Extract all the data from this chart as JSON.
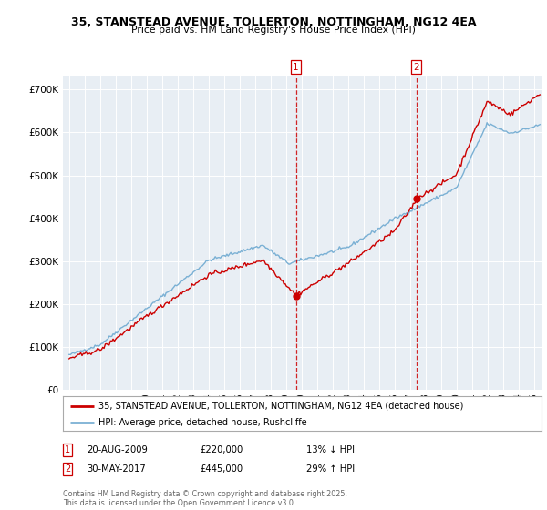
{
  "title": "35, STANSTEAD AVENUE, TOLLERTON, NOTTINGHAM, NG12 4EA",
  "subtitle": "Price paid vs. HM Land Registry's House Price Index (HPI)",
  "legend_line1": "35, STANSTEAD AVENUE, TOLLERTON, NOTTINGHAM, NG12 4EA (detached house)",
  "legend_line2": "HPI: Average price, detached house, Rushcliffe",
  "marker1_date": "20-AUG-2009",
  "marker1_price": "£220,000",
  "marker1_hpi": "13% ↓ HPI",
  "marker1_year": 2009.64,
  "marker1_val": 220000,
  "marker2_date": "30-MAY-2017",
  "marker2_price": "£445,000",
  "marker2_hpi": "29% ↑ HPI",
  "marker2_year": 2017.41,
  "marker2_val": 445000,
  "red_color": "#cc0000",
  "blue_color": "#7ab0d4",
  "background_color": "#e8eef4",
  "footer_text": "Contains HM Land Registry data © Crown copyright and database right 2025.\nThis data is licensed under the Open Government Licence v3.0.",
  "ylim": [
    0,
    730000
  ],
  "yticks": [
    0,
    100000,
    200000,
    300000,
    400000,
    500000,
    600000,
    700000
  ],
  "xlim": [
    1994.6,
    2025.5
  ]
}
